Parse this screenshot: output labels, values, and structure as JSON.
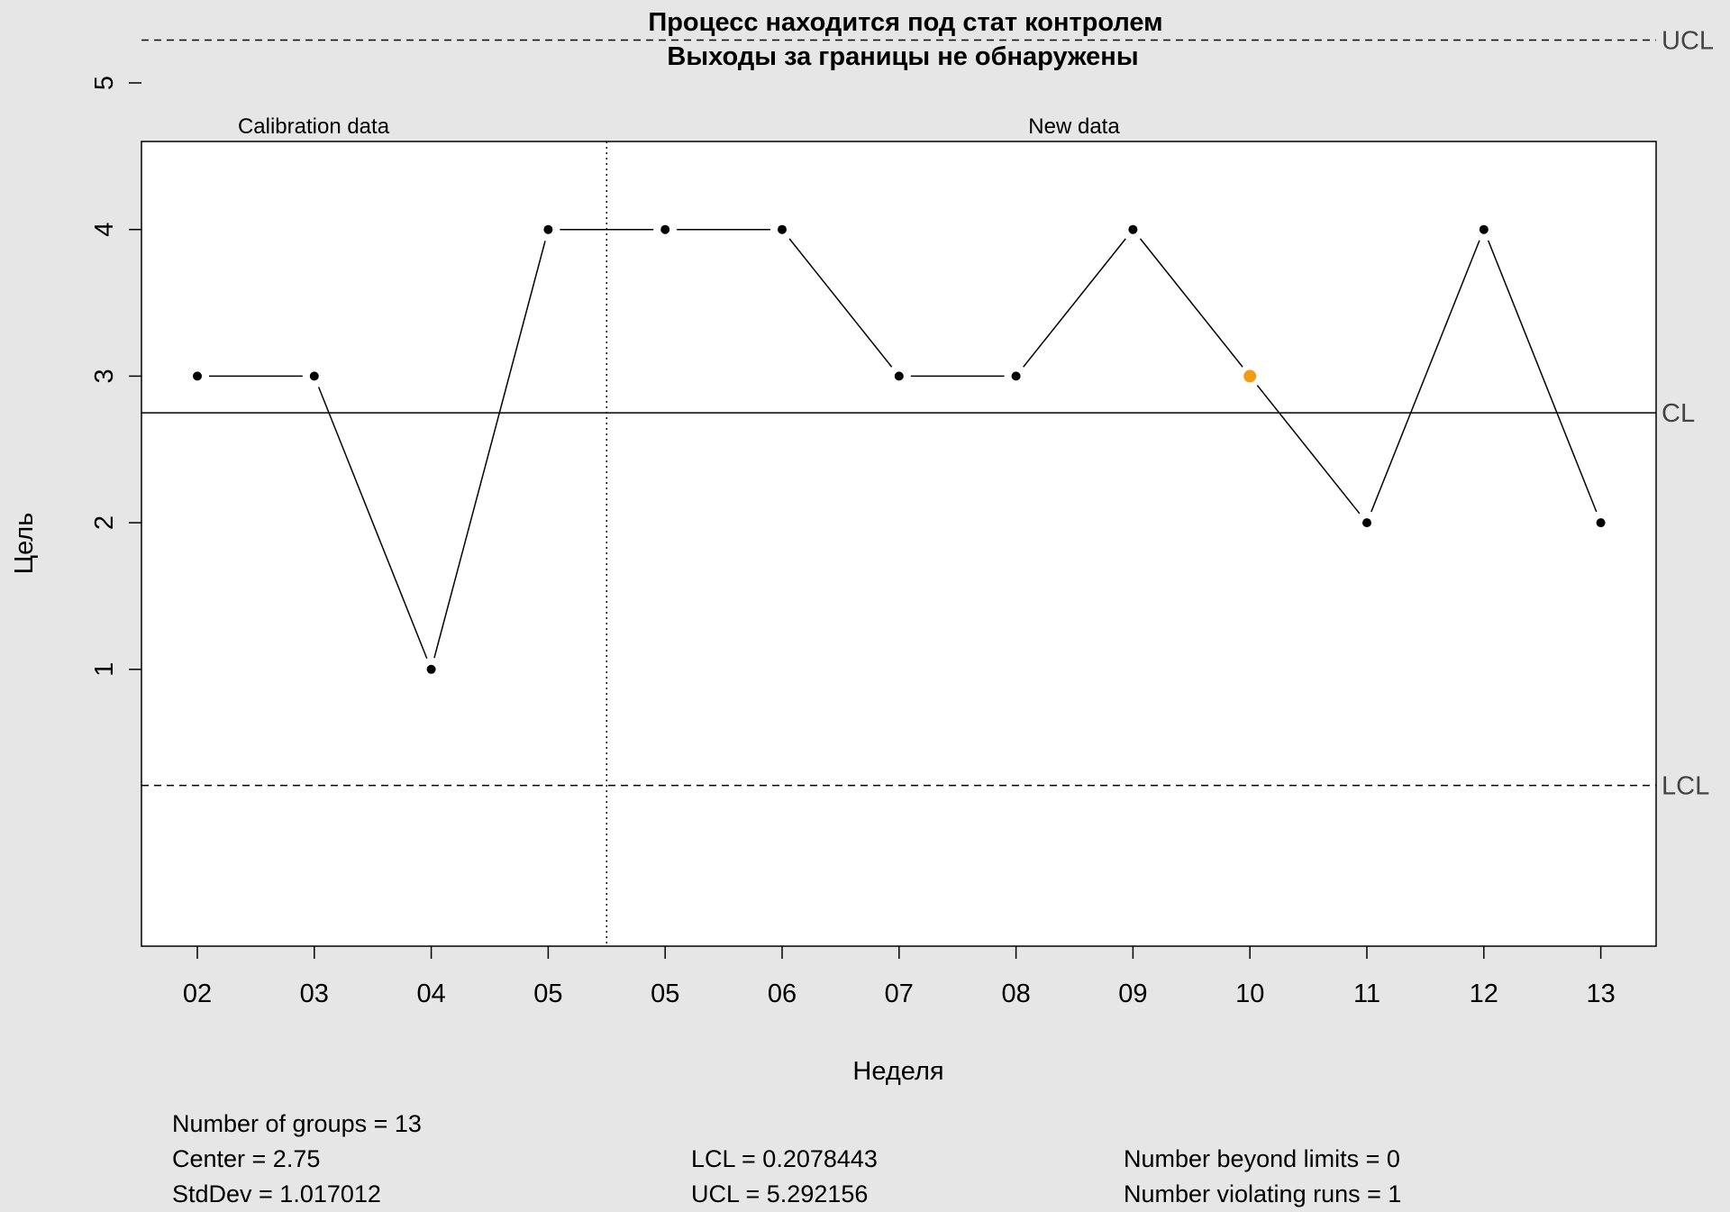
{
  "chart_data": {
    "type": "line",
    "title_line1": "Процесс находится под стат контролем",
    "title_line2": "Выходы за границы не обнаружены",
    "xlabel": "Неделя",
    "ylabel": "Цель",
    "section_labels": [
      "Calibration data",
      "New data"
    ],
    "categories": [
      "02",
      "03",
      "04",
      "05",
      "05",
      "06",
      "07",
      "08",
      "09",
      "10",
      "11",
      "12",
      "13"
    ],
    "values": [
      3,
      3,
      1,
      4,
      4,
      4,
      3,
      3,
      4,
      3,
      2,
      4,
      2
    ],
    "calibration_count": 4,
    "highlight_index": 9,
    "center": 2.75,
    "lcl": 0.2078443,
    "ucl": 5.292156,
    "ylim": [
      0.0,
      5.5
    ],
    "yticks": [
      1,
      2,
      3,
      4,
      5
    ],
    "limit_labels": {
      "ucl": "UCL",
      "cl": "CL",
      "lcl": "LCL"
    },
    "colors": {
      "points": "#000000",
      "highlight": "#f39c12",
      "background": "#e6e6e6",
      "plot_bg": "#ffffff"
    }
  },
  "summary": {
    "col1": [
      "Number of groups = 13",
      "Center = 2.75",
      "StdDev = 1.017012"
    ],
    "col2": [
      "LCL = 0.2078443",
      "UCL = 5.292156"
    ],
    "col3": [
      "Number beyond limits = 0",
      "Number violating runs = 1"
    ]
  }
}
